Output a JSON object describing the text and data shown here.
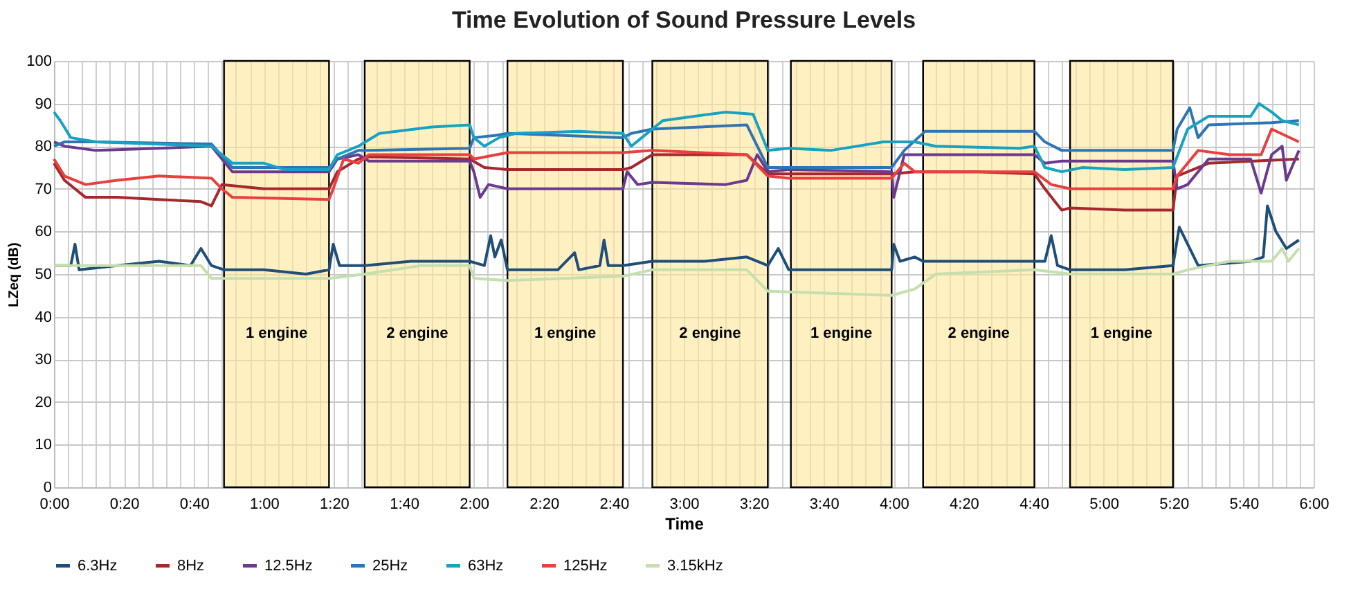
{
  "chart_data": {
    "type": "line",
    "title": "Time Evolution of Sound Pressure Levels",
    "xlabel": "Time",
    "ylabel": "LZeq (dB)",
    "xlim": [
      0,
      6
    ],
    "ylim": [
      0,
      100
    ],
    "yticks": [
      0,
      10,
      20,
      30,
      40,
      50,
      60,
      70,
      80,
      90,
      100
    ],
    "xticks": [
      {
        "value": 0,
        "label": "0:00"
      },
      {
        "value": 0.0667,
        "label": null
      },
      {
        "value": 0.1333,
        "label": null
      },
      {
        "value": 0.2,
        "label": null
      },
      {
        "value": 0.2667,
        "label": null
      },
      {
        "value": 0.3333,
        "label": "0:20"
      },
      {
        "value": 0.4,
        "label": null
      },
      {
        "value": 0.4667,
        "label": null
      },
      {
        "value": 0.5333,
        "label": null
      },
      {
        "value": 0.6,
        "label": null
      },
      {
        "value": 0.6667,
        "label": "0:40"
      },
      {
        "value": 0.7333,
        "label": null
      },
      {
        "value": 0.8,
        "label": null
      },
      {
        "value": 0.8667,
        "label": null
      },
      {
        "value": 0.9333,
        "label": null
      },
      {
        "value": 1,
        "label": "1:00"
      },
      {
        "value": 1.0667,
        "label": null
      },
      {
        "value": 1.1333,
        "label": null
      },
      {
        "value": 1.2,
        "label": null
      },
      {
        "value": 1.2667,
        "label": null
      },
      {
        "value": 1.3333,
        "label": "1:20"
      },
      {
        "value": 1.4,
        "label": null
      },
      {
        "value": 1.4667,
        "label": null
      },
      {
        "value": 1.5333,
        "label": null
      },
      {
        "value": 1.6,
        "label": null
      },
      {
        "value": 1.6667,
        "label": "1:40"
      },
      {
        "value": 1.7333,
        "label": null
      },
      {
        "value": 1.8,
        "label": null
      },
      {
        "value": 1.8667,
        "label": null
      },
      {
        "value": 1.9333,
        "label": null
      },
      {
        "value": 2,
        "label": "2:00"
      },
      {
        "value": 2.0667,
        "label": null
      },
      {
        "value": 2.1333,
        "label": null
      },
      {
        "value": 2.2,
        "label": null
      },
      {
        "value": 2.2667,
        "label": null
      },
      {
        "value": 2.3333,
        "label": "2:20"
      },
      {
        "value": 2.4,
        "label": null
      },
      {
        "value": 2.4667,
        "label": null
      },
      {
        "value": 2.5333,
        "label": null
      },
      {
        "value": 2.6,
        "label": null
      },
      {
        "value": 2.6667,
        "label": "2:40"
      },
      {
        "value": 2.7333,
        "label": null
      },
      {
        "value": 2.8,
        "label": null
      },
      {
        "value": 2.8667,
        "label": null
      },
      {
        "value": 2.9333,
        "label": null
      },
      {
        "value": 3,
        "label": "3:00"
      },
      {
        "value": 3.0667,
        "label": null
      },
      {
        "value": 3.1333,
        "label": null
      },
      {
        "value": 3.2,
        "label": null
      },
      {
        "value": 3.2667,
        "label": null
      },
      {
        "value": 3.3333,
        "label": "3:20"
      },
      {
        "value": 3.4,
        "label": null
      },
      {
        "value": 3.4667,
        "label": null
      },
      {
        "value": 3.5333,
        "label": null
      },
      {
        "value": 3.6,
        "label": null
      },
      {
        "value": 3.6667,
        "label": "3:40"
      },
      {
        "value": 3.7333,
        "label": null
      },
      {
        "value": 3.8,
        "label": null
      },
      {
        "value": 3.8667,
        "label": null
      },
      {
        "value": 3.9333,
        "label": null
      },
      {
        "value": 4,
        "label": "4:00"
      },
      {
        "value": 4.0667,
        "label": null
      },
      {
        "value": 4.1333,
        "label": null
      },
      {
        "value": 4.2,
        "label": null
      },
      {
        "value": 4.2667,
        "label": null
      },
      {
        "value": 4.3333,
        "label": "4:20"
      },
      {
        "value": 4.4,
        "label": null
      },
      {
        "value": 4.4667,
        "label": null
      },
      {
        "value": 4.5333,
        "label": null
      },
      {
        "value": 4.6,
        "label": null
      },
      {
        "value": 4.6667,
        "label": "4:40"
      },
      {
        "value": 4.7333,
        "label": null
      },
      {
        "value": 4.8,
        "label": null
      },
      {
        "value": 4.8667,
        "label": null
      },
      {
        "value": 4.9333,
        "label": null
      },
      {
        "value": 5,
        "label": "5:00"
      },
      {
        "value": 5.0667,
        "label": null
      },
      {
        "value": 5.1333,
        "label": null
      },
      {
        "value": 5.2,
        "label": null
      },
      {
        "value": 5.2667,
        "label": null
      },
      {
        "value": 5.3333,
        "label": "5:20"
      },
      {
        "value": 5.4,
        "label": null
      },
      {
        "value": 5.4667,
        "label": null
      },
      {
        "value": 5.5333,
        "label": null
      },
      {
        "value": 5.6,
        "label": null
      },
      {
        "value": 5.6667,
        "label": "5:40"
      },
      {
        "value": 5.7333,
        "label": null
      },
      {
        "value": 5.8,
        "label": null
      },
      {
        "value": 5.8667,
        "label": null
      },
      {
        "value": 5.9333,
        "label": null
      },
      {
        "value": 6,
        "label": "6:00"
      }
    ],
    "grid": true,
    "legend": "bottom",
    "bands": [
      {
        "axis": "x",
        "from": 0.81,
        "to": 1.31,
        "label": "1 engine",
        "color": "#ffe699"
      },
      {
        "axis": "x",
        "from": 1.48,
        "to": 1.98,
        "label": "2 engine",
        "color": "#ffe699"
      },
      {
        "axis": "x",
        "from": 2.16,
        "to": 2.71,
        "label": "1 engine",
        "color": "#ffe699"
      },
      {
        "axis": "x",
        "from": 2.85,
        "to": 3.4,
        "label": "2 engine",
        "color": "#ffe699"
      },
      {
        "axis": "x",
        "from": 3.51,
        "to": 3.99,
        "label": "1 engine",
        "color": "#ffe699"
      },
      {
        "axis": "x",
        "from": 4.14,
        "to": 4.67,
        "label": "2 engine",
        "color": "#ffe699"
      },
      {
        "axis": "x",
        "from": 4.84,
        "to": 5.33,
        "label": "1 engine",
        "color": "#ffe699"
      }
    ],
    "series": [
      {
        "name": "6.3Hz",
        "color": "#1f4e79",
        "x": [
          0,
          0.08,
          0.1,
          0.12,
          0.3,
          0.5,
          0.65,
          0.7,
          0.75,
          0.81,
          1.0,
          1.2,
          1.31,
          1.33,
          1.36,
          1.48,
          1.7,
          1.98,
          2.05,
          2.08,
          2.1,
          2.13,
          2.16,
          2.4,
          2.48,
          2.5,
          2.6,
          2.62,
          2.64,
          2.71,
          2.85,
          3.1,
          3.3,
          3.4,
          3.45,
          3.5,
          3.7,
          3.99,
          4.0,
          4.03,
          4.1,
          4.14,
          4.4,
          4.67,
          4.72,
          4.75,
          4.78,
          4.84,
          5.1,
          5.33,
          5.36,
          5.45,
          5.7,
          5.76,
          5.78,
          5.82,
          5.87,
          5.93
        ],
        "values": [
          52,
          52,
          57,
          51,
          52,
          53,
          52,
          56,
          52,
          51,
          51,
          50,
          51,
          57,
          52,
          52,
          53,
          53,
          52,
          59,
          54,
          58,
          51,
          51,
          55,
          51,
          52,
          58,
          52,
          52,
          53,
          53,
          54,
          52,
          56,
          51,
          51,
          51,
          57,
          53,
          54,
          53,
          53,
          53,
          53,
          59,
          52,
          51,
          51,
          52,
          61,
          52,
          53,
          54,
          66,
          60,
          56,
          58
        ]
      },
      {
        "name": "8Hz",
        "color": "#a5282c",
        "x": [
          0,
          0.05,
          0.1,
          0.15,
          0.3,
          0.5,
          0.7,
          0.75,
          0.8,
          1.0,
          1.31,
          1.35,
          1.45,
          1.5,
          1.98,
          2.05,
          2.16,
          2.71,
          2.75,
          2.85,
          3.3,
          3.4,
          3.7,
          3.99,
          4.1,
          4.4,
          4.67,
          4.72,
          4.8,
          4.84,
          5.1,
          5.33,
          5.35,
          5.5,
          5.93
        ],
        "values": [
          76,
          72,
          70,
          68,
          68,
          67.5,
          67,
          66,
          71,
          70,
          70,
          74,
          77,
          77.5,
          77,
          75,
          74.5,
          74.5,
          75,
          78,
          78,
          73.5,
          73.5,
          73.5,
          74,
          74,
          73.5,
          70,
          65,
          65.5,
          65,
          65,
          73,
          76,
          77
        ]
      },
      {
        "name": "12.5Hz",
        "color": "#6b3a8e",
        "x": [
          0,
          0.05,
          0.2,
          0.5,
          0.75,
          0.85,
          1.31,
          1.35,
          1.45,
          1.5,
          1.98,
          2.0,
          2.03,
          2.07,
          2.16,
          2.71,
          2.73,
          2.78,
          2.85,
          3.2,
          3.3,
          3.35,
          3.4,
          3.5,
          3.99,
          4.0,
          4.05,
          4.15,
          4.67,
          4.72,
          4.8,
          5.33,
          5.35,
          5.4,
          5.5,
          5.7,
          5.75,
          5.8,
          5.85,
          5.87,
          5.93
        ],
        "values": [
          81,
          80,
          79,
          79.5,
          80,
          74,
          74,
          77,
          78,
          76.5,
          76.5,
          74,
          68,
          71,
          70,
          70,
          74,
          71,
          71.5,
          71,
          72,
          78,
          74,
          74.5,
          74,
          68,
          78,
          78,
          78,
          76,
          76.5,
          76.5,
          70,
          71,
          77,
          77,
          69,
          78,
          80,
          72,
          79
        ]
      },
      {
        "name": "25Hz",
        "color": "#2e75b6",
        "x": [
          0,
          0.05,
          0.2,
          0.75,
          0.85,
          1.31,
          1.35,
          1.45,
          1.5,
          1.98,
          2.0,
          2.1,
          2.16,
          2.71,
          2.75,
          2.85,
          3.3,
          3.35,
          3.4,
          3.5,
          3.99,
          4.05,
          4.15,
          4.67,
          4.72,
          4.8,
          5.33,
          5.35,
          5.41,
          5.45,
          5.5,
          5.8,
          5.93
        ],
        "values": [
          80,
          81,
          81,
          80.5,
          75,
          75,
          77,
          79,
          79,
          79.5,
          82,
          82.5,
          83,
          82,
          83,
          84,
          85,
          80,
          75,
          75,
          75,
          79,
          83.5,
          83.5,
          81,
          79,
          79,
          84,
          89,
          82,
          85,
          85.5,
          86
        ]
      },
      {
        "name": "63Hz",
        "color": "#17a2c2",
        "x": [
          0,
          0.03,
          0.08,
          0.2,
          0.75,
          0.85,
          1.0,
          1.1,
          1.31,
          1.35,
          1.45,
          1.55,
          1.8,
          1.98,
          2.0,
          2.05,
          2.12,
          2.2,
          2.5,
          2.71,
          2.75,
          2.8,
          2.9,
          3.2,
          3.33,
          3.4,
          3.5,
          3.7,
          3.95,
          4.1,
          4.2,
          4.6,
          4.67,
          4.72,
          4.8,
          4.9,
          5.1,
          5.33,
          5.4,
          5.5,
          5.7,
          5.74,
          5.8,
          5.85,
          5.93
        ],
        "values": [
          88,
          86,
          82,
          81,
          80,
          76,
          76,
          74.5,
          74.5,
          78,
          80,
          83,
          84.5,
          85,
          82,
          80,
          82,
          83,
          83.5,
          83,
          80,
          82,
          86,
          88,
          87.5,
          79,
          79.5,
          79,
          81,
          81,
          80,
          79.5,
          80,
          75,
          74,
          75,
          74.5,
          75,
          84,
          87,
          87,
          90,
          88,
          86,
          85
        ]
      },
      {
        "name": "125Hz",
        "color": "#e8403f",
        "x": [
          0,
          0.05,
          0.15,
          0.3,
          0.5,
          0.75,
          0.8,
          0.85,
          1.31,
          1.33,
          1.38,
          1.45,
          1.5,
          1.98,
          2.0,
          2.16,
          2.71,
          2.85,
          3.3,
          3.4,
          3.5,
          3.99,
          4.05,
          4.1,
          4.14,
          4.67,
          4.75,
          4.84,
          5.33,
          5.35,
          5.45,
          5.6,
          5.75,
          5.8,
          5.93
        ],
        "values": [
          77,
          73,
          71,
          72,
          73,
          72.5,
          70,
          68,
          67.5,
          70,
          77,
          76,
          78,
          78,
          77,
          78.5,
          78.5,
          79,
          78,
          73,
          72.5,
          72.5,
          76,
          74,
          74,
          74,
          71,
          70,
          70,
          73,
          79,
          78,
          78,
          84,
          81
        ]
      },
      {
        "name": "3.15kHz",
        "color": "#c5dfad",
        "x": [
          0,
          0.7,
          0.75,
          0.8,
          1.31,
          1.48,
          1.75,
          1.98,
          2.0,
          2.16,
          2.71,
          2.85,
          3.3,
          3.4,
          3.99,
          4.1,
          4.2,
          4.67,
          4.84,
          5.33,
          5.4,
          5.6,
          5.8,
          5.85,
          5.88,
          5.93
        ],
        "values": [
          52,
          52,
          49,
          49,
          49,
          50,
          52,
          52,
          49,
          48.5,
          49.5,
          51,
          51,
          46,
          45,
          46.5,
          50,
          51,
          50,
          50,
          51,
          53,
          53,
          56,
          53,
          56
        ]
      }
    ]
  }
}
